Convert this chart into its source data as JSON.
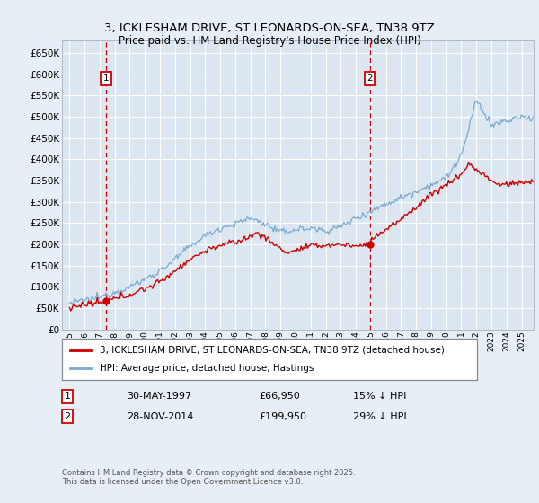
{
  "title": "3, ICKLESHAM DRIVE, ST LEONARDS-ON-SEA, TN38 9TZ",
  "subtitle": "Price paid vs. HM Land Registry's House Price Index (HPI)",
  "legend_label_red": "3, ICKLESHAM DRIVE, ST LEONARDS-ON-SEA, TN38 9TZ (detached house)",
  "legend_label_blue": "HPI: Average price, detached house, Hastings",
  "annotation1_date": "30-MAY-1997",
  "annotation1_price": "£66,950",
  "annotation1_hpi": "15% ↓ HPI",
  "annotation2_date": "28-NOV-2014",
  "annotation2_price": "£199,950",
  "annotation2_hpi": "29% ↓ HPI",
  "footer": "Contains HM Land Registry data © Crown copyright and database right 2025.\nThis data is licensed under the Open Government Licence v3.0.",
  "ylim": [
    0,
    680000
  ],
  "yticks": [
    0,
    50000,
    100000,
    150000,
    200000,
    250000,
    300000,
    350000,
    400000,
    450000,
    500000,
    550000,
    600000,
    650000
  ],
  "background_color": "#e8eef5",
  "plot_bg_color": "#dce6f0",
  "grid_color": "#ffffff",
  "red_color": "#cc0000",
  "blue_color": "#7aaacf",
  "dashed_color": "#cc0000",
  "marker1_x": 1997.42,
  "marker1_y": 66950,
  "marker2_x": 2014.92,
  "marker2_y": 199950,
  "xmin": 1994.5,
  "xmax": 2025.8
}
